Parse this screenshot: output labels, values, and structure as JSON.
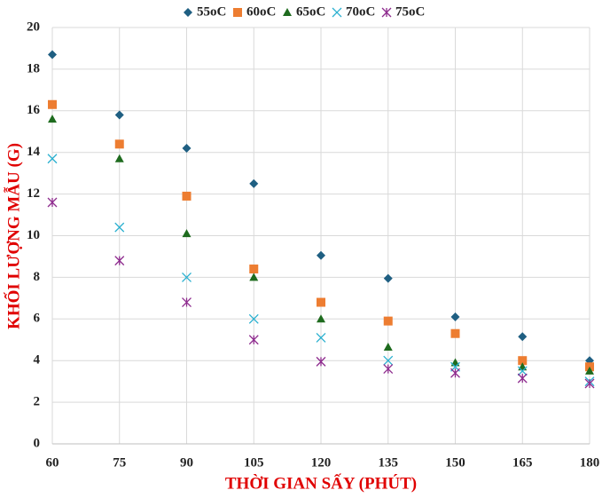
{
  "chart_data": {
    "type": "scatter",
    "x_label": "THỜI GIAN SẤY (PHÚT)",
    "y_label": "KHỐI LƯỢNG MẪU (G)",
    "x": [
      60,
      75,
      90,
      105,
      120,
      135,
      150,
      165,
      180
    ],
    "series": [
      {
        "name": "55oC",
        "color": "#1f5f82",
        "marker": "diamond",
        "values": [
          18.7,
          15.8,
          14.2,
          12.5,
          9.05,
          7.95,
          6.1,
          5.15,
          4.0
        ]
      },
      {
        "name": "60oC",
        "color": "#ed7d31",
        "marker": "square",
        "values": [
          16.3,
          14.4,
          11.9,
          8.4,
          6.8,
          5.9,
          5.3,
          4.0,
          3.7
        ]
      },
      {
        "name": "65oC",
        "color": "#1e6b1e",
        "marker": "triangle",
        "values": [
          15.6,
          13.7,
          10.1,
          8.0,
          6.0,
          4.65,
          3.9,
          3.7,
          3.5
        ]
      },
      {
        "name": "70oC",
        "color": "#2ab0d0",
        "marker": "x",
        "values": [
          13.7,
          10.4,
          8.0,
          6.0,
          5.1,
          4.0,
          3.7,
          3.5,
          3.0
        ]
      },
      {
        "name": "75oC",
        "color": "#8e2c8e",
        "marker": "star",
        "values": [
          11.6,
          8.8,
          6.8,
          5.0,
          3.95,
          3.6,
          3.4,
          3.15,
          2.9
        ]
      }
    ],
    "xlim": [
      60,
      180
    ],
    "xticks": [
      60,
      75,
      90,
      105,
      120,
      135,
      150,
      165,
      180
    ],
    "ylim": [
      0,
      20
    ],
    "yticks": [
      0,
      2,
      4,
      6,
      8,
      10,
      12,
      14,
      16,
      18,
      20
    ],
    "grid": true,
    "legend": "top"
  }
}
